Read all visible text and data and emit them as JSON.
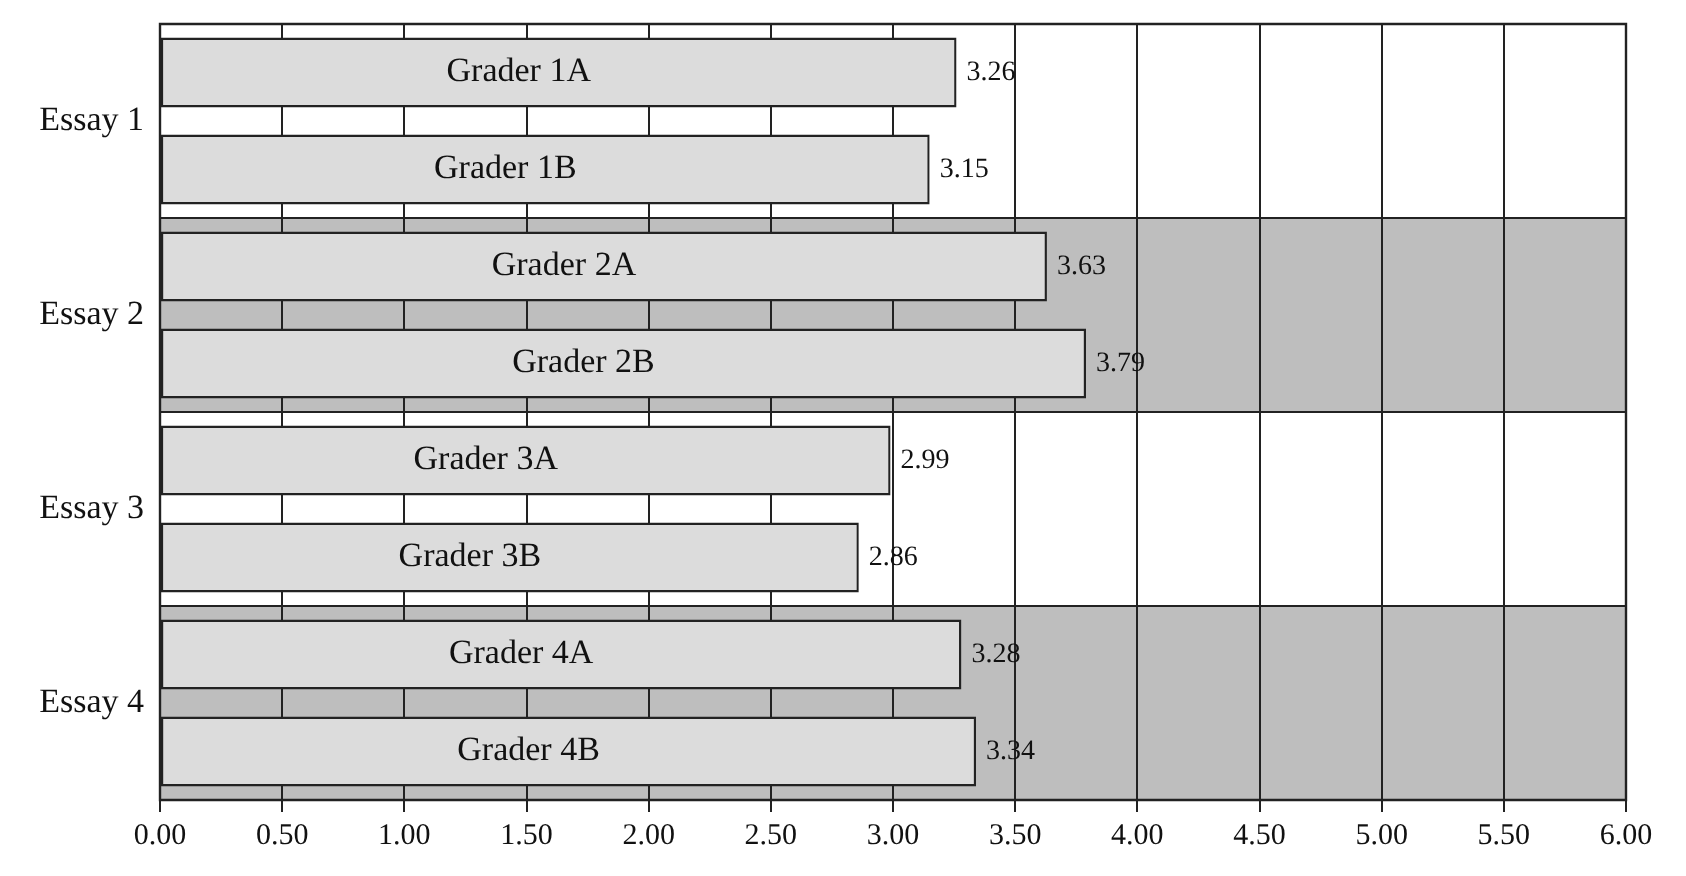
{
  "chart_data": {
    "type": "bar",
    "orientation": "horizontal",
    "categories": [
      "Grader 1A",
      "Grader 1B",
      "Grader 2A",
      "Grader 2B",
      "Grader 3A",
      "Grader 3B",
      "Grader 4A",
      "Grader 4B"
    ],
    "values": [
      3.26,
      3.15,
      3.63,
      3.79,
      2.99,
      2.86,
      3.28,
      3.34
    ],
    "color": "#dcdcdc",
    "data_labels": true,
    "xlim": [
      0,
      6
    ],
    "xticks": [
      {
        "value": 0,
        "label": "0.00"
      },
      {
        "value": 0.5,
        "label": "0.50"
      },
      {
        "value": 1,
        "label": "1.00"
      },
      {
        "value": 1.5,
        "label": "1.50"
      },
      {
        "value": 2,
        "label": "2.00"
      },
      {
        "value": 2.5,
        "label": "2.50"
      },
      {
        "value": 3,
        "label": "3.00"
      },
      {
        "value": 3.5,
        "label": "3.50"
      },
      {
        "value": 4,
        "label": "4.00"
      },
      {
        "value": 4.5,
        "label": "4.50"
      },
      {
        "value": 5,
        "label": "5.00"
      },
      {
        "value": 5.5,
        "label": "5.50"
      },
      {
        "value": 6,
        "label": "6.00"
      }
    ],
    "grid": "x",
    "bands": [
      {
        "axis": "y",
        "from": "Grader 1A",
        "to": "Grader 1B",
        "label": "Essay 1"
      },
      {
        "axis": "y",
        "from": "Grader 2A",
        "to": "Grader 2B",
        "label": "Essay 2",
        "color": "#bebebe"
      },
      {
        "axis": "y",
        "from": "Grader 3A",
        "to": "Grader 3B",
        "label": "Essay 3"
      },
      {
        "axis": "y",
        "from": "Grader 4A",
        "to": "Grader 4B",
        "label": "Essay 4",
        "color": "#bebebe"
      }
    ]
  }
}
